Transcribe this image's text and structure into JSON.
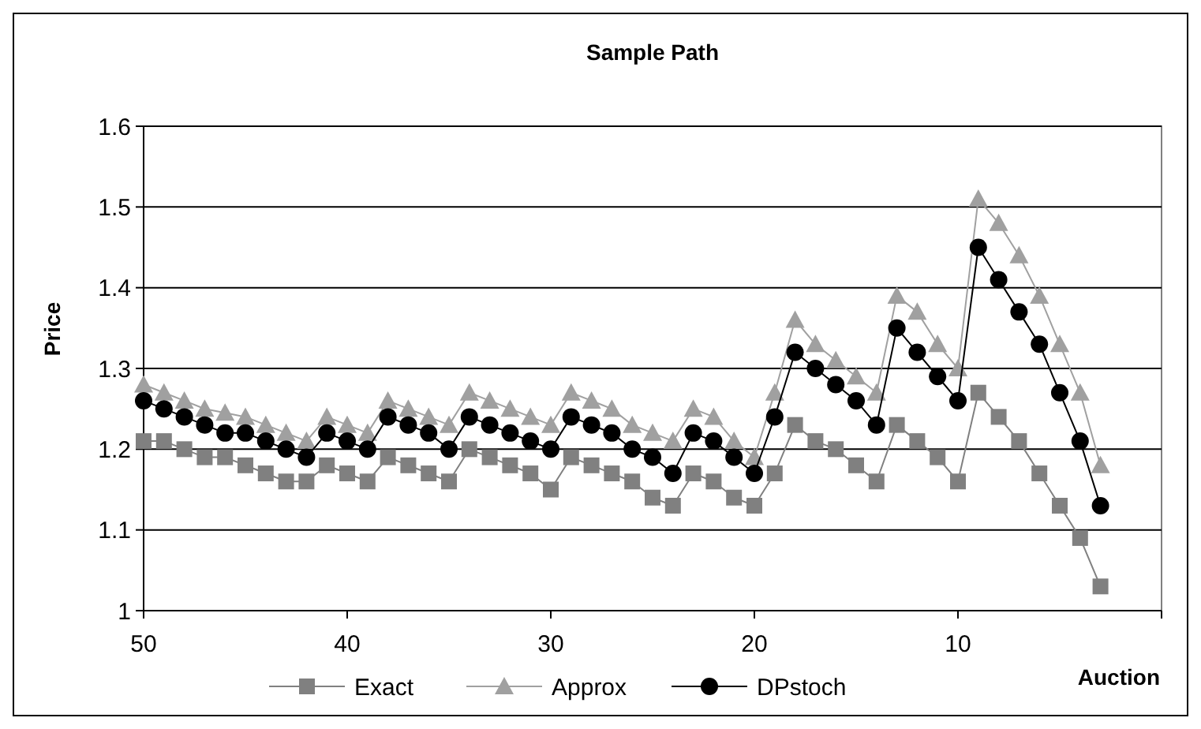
{
  "chart_data": {
    "type": "line",
    "title": "Sample Path",
    "xlabel": "Auction",
    "ylabel": "Price",
    "x": [
      50,
      49,
      48,
      47,
      46,
      45,
      44,
      43,
      42,
      41,
      40,
      39,
      38,
      37,
      36,
      35,
      34,
      33,
      32,
      31,
      30,
      29,
      28,
      27,
      26,
      25,
      24,
      23,
      22,
      21,
      20,
      19,
      18,
      17,
      16,
      15,
      14,
      13,
      12,
      11,
      10,
      9,
      8,
      7,
      6,
      5,
      4,
      3
    ],
    "xlim": [
      50,
      0
    ],
    "xticks": [
      50,
      40,
      30,
      20,
      10,
      {
        "value": 0,
        "label": null
      }
    ],
    "ylim": [
      1,
      1.6
    ],
    "yticks": [
      1,
      1.1,
      1.2,
      1.3,
      1.4,
      1.5,
      1.6
    ],
    "grid": "y",
    "legend": "bottom",
    "series": [
      {
        "name": "Exact",
        "color": "#808080",
        "marker": "square",
        "values": [
          1.21,
          1.21,
          1.2,
          1.19,
          1.19,
          1.18,
          1.17,
          1.16,
          1.16,
          1.18,
          1.17,
          1.16,
          1.19,
          1.18,
          1.17,
          1.16,
          1.2,
          1.19,
          1.18,
          1.17,
          1.15,
          1.19,
          1.18,
          1.17,
          1.16,
          1.14,
          1.13,
          1.17,
          1.16,
          1.14,
          1.13,
          1.17,
          1.23,
          1.21,
          1.2,
          1.18,
          1.16,
          1.23,
          1.21,
          1.19,
          1.16,
          1.27,
          1.24,
          1.21,
          1.17,
          1.13,
          1.09,
          1.03
        ]
      },
      {
        "name": "Approx",
        "color": "#a0a0a0",
        "marker": "triangle",
        "values": [
          1.28,
          1.27,
          1.26,
          1.25,
          1.245,
          1.24,
          1.23,
          1.22,
          1.21,
          1.24,
          1.23,
          1.22,
          1.26,
          1.25,
          1.24,
          1.23,
          1.27,
          1.26,
          1.25,
          1.24,
          1.23,
          1.27,
          1.26,
          1.25,
          1.23,
          1.22,
          1.21,
          1.25,
          1.24,
          1.21,
          1.19,
          1.27,
          1.36,
          1.33,
          1.31,
          1.29,
          1.27,
          1.39,
          1.37,
          1.33,
          1.3,
          1.51,
          1.48,
          1.44,
          1.39,
          1.33,
          1.27,
          1.18
        ]
      },
      {
        "name": "DPstoch",
        "color": "#000000",
        "marker": "circle",
        "values": [
          1.26,
          1.25,
          1.24,
          1.23,
          1.22,
          1.22,
          1.21,
          1.2,
          1.19,
          1.22,
          1.21,
          1.2,
          1.24,
          1.23,
          1.22,
          1.2,
          1.24,
          1.23,
          1.22,
          1.21,
          1.2,
          1.24,
          1.23,
          1.22,
          1.2,
          1.19,
          1.17,
          1.22,
          1.21,
          1.19,
          1.17,
          1.24,
          1.32,
          1.3,
          1.28,
          1.26,
          1.23,
          1.35,
          1.32,
          1.29,
          1.26,
          1.45,
          1.41,
          1.37,
          1.33,
          1.27,
          1.21,
          1.13
        ]
      }
    ]
  }
}
